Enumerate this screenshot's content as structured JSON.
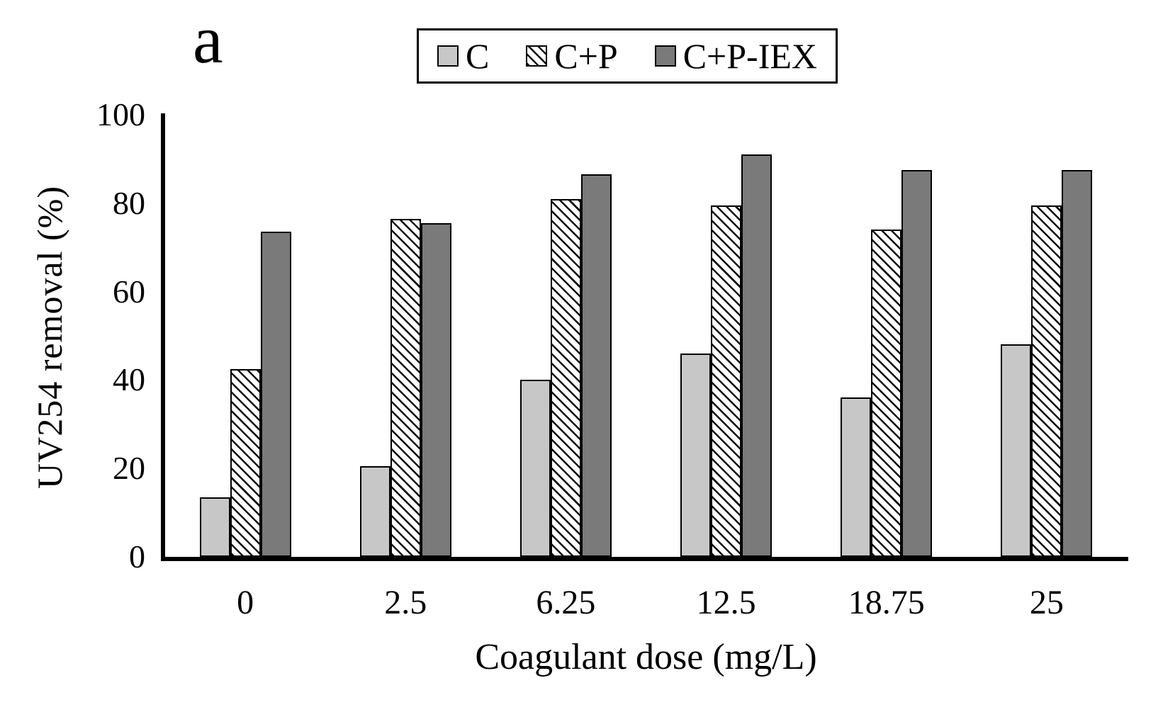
{
  "panel_label": "a",
  "legend": [
    {
      "label": "C",
      "pattern": "light-gray-solid"
    },
    {
      "label": "C+P",
      "pattern": "diagonal-hatch"
    },
    {
      "label": "C+P-IEX",
      "pattern": "dark-gray-solid"
    }
  ],
  "colors": {
    "light_gray": "#c7c7c7",
    "dark_gray": "#7a7a7a",
    "hatch_stroke": "#0d0d0d",
    "hatch_background": "#ffffff",
    "bar_border": "#000000",
    "axis": "#000000"
  },
  "chart_data": {
    "type": "bar",
    "title": "",
    "categories": [
      "0",
      "2.5",
      "6.25",
      "12.5",
      "18.75",
      "25"
    ],
    "series": [
      {
        "name": "C",
        "pattern": "light-gray-solid",
        "values": [
          13.5,
          20.5,
          40,
          46,
          36,
          48
        ]
      },
      {
        "name": "C+P",
        "pattern": "diagonal-hatch",
        "values": [
          42.5,
          76.5,
          81,
          79.5,
          74,
          79.5
        ]
      },
      {
        "name": "C+P-IEX",
        "pattern": "dark-gray-solid",
        "values": [
          73.5,
          75.5,
          86.5,
          91,
          87.5,
          87.5
        ]
      }
    ],
    "xlabel": "Coagulant dose (mg/L)",
    "ylabel": "UV254 removal (%)",
    "ylim": [
      0,
      100
    ],
    "yticks": [
      0,
      20,
      40,
      60,
      80,
      100
    ],
    "grid": false,
    "legend_position": "top-center"
  }
}
